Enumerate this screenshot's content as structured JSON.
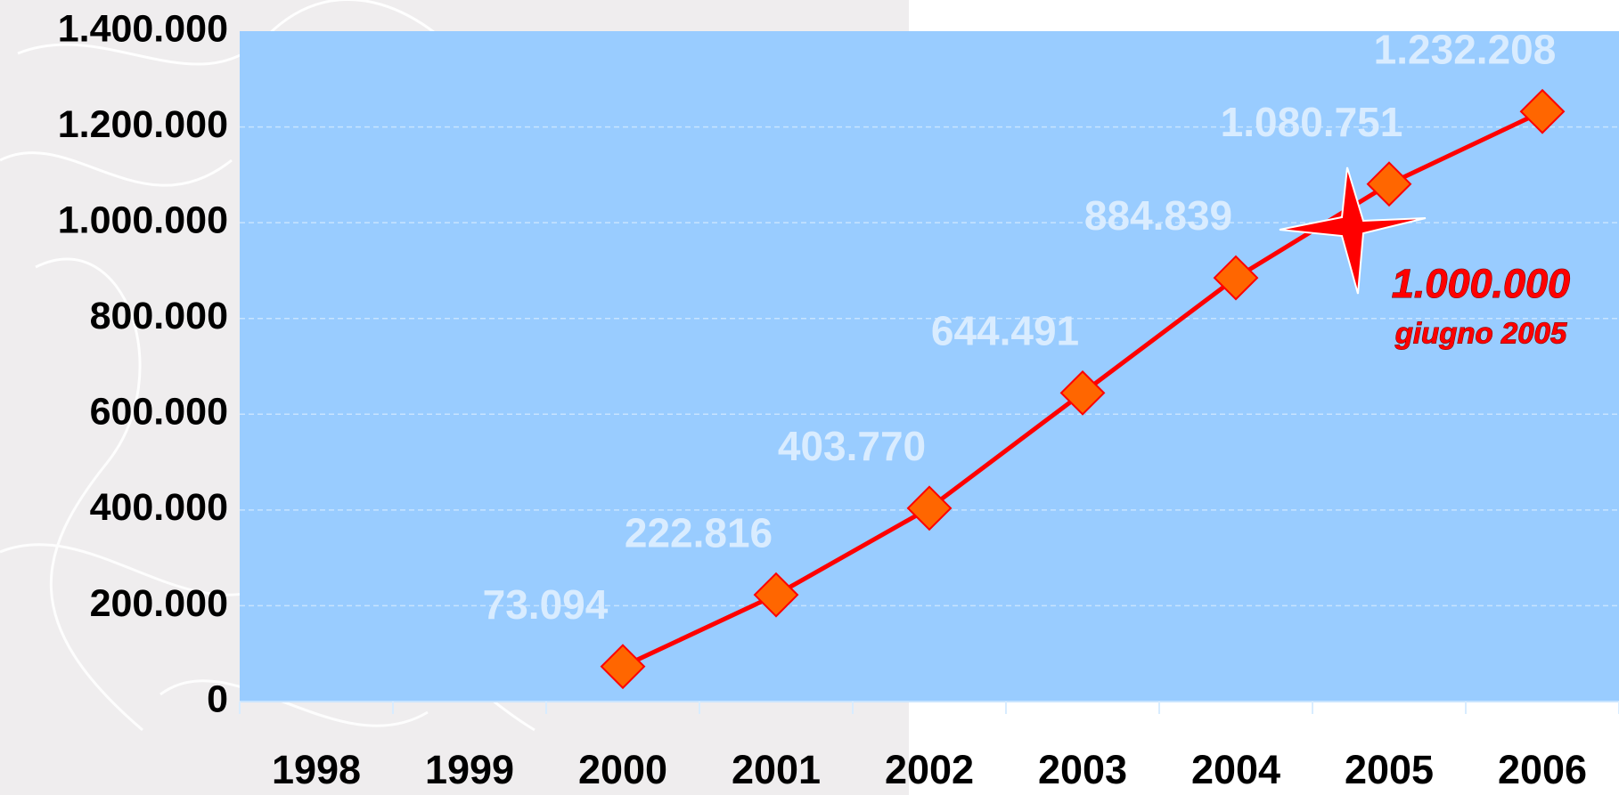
{
  "chart_data": {
    "type": "line",
    "categories": [
      "1998",
      "1999",
      "2000",
      "2001",
      "2002",
      "2003",
      "2004",
      "2005",
      "2006"
    ],
    "values": [
      null,
      null,
      73094,
      222816,
      403770,
      644491,
      884839,
      1080751,
      1232208
    ],
    "value_labels": [
      null,
      null,
      "73.094",
      "222.816",
      "403.770",
      "644.491",
      "884.839",
      "1.080.751",
      "1.232.208"
    ],
    "color": "#ff0000",
    "marker_color": "#ff6600",
    "ylim": [
      0,
      1400000
    ],
    "yticks": [
      0,
      {
        "value": 200000,
        "label": "200.000"
      },
      {
        "value": 400000,
        "label": "400.000"
      },
      {
        "value": 600000,
        "label": "600.000"
      },
      {
        "value": 800000,
        "label": "800.000"
      },
      {
        "value": 1000000,
        "label": "1.000.000"
      },
      {
        "value": 1200000,
        "label": "1.200.000"
      },
      {
        "value": 1400000,
        "label": "1.400.000"
      }
    ],
    "grid": true,
    "annotation": {
      "text": "1.000.000",
      "subtext": "giugno 2005"
    }
  }
}
